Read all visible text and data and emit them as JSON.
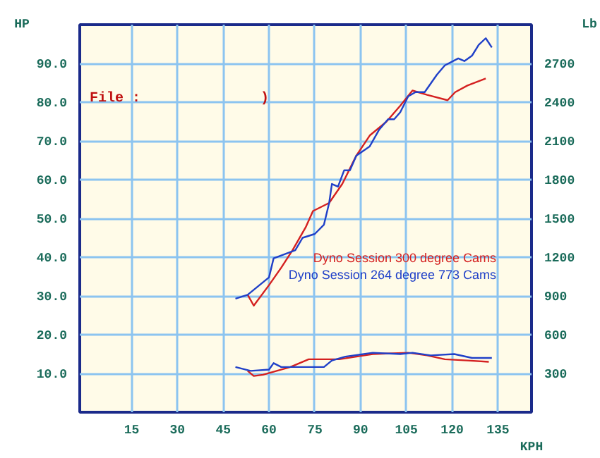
{
  "chart_data": {
    "type": "line",
    "xlabel": "KPH",
    "ylabel": "HP",
    "y2label": "Lb",
    "xlim": [
      -2,
      146
    ],
    "ylim": [
      0,
      100
    ],
    "y2lim": [
      0,
      3000
    ],
    "xticks": [
      15,
      30,
      45,
      60,
      75,
      90,
      105,
      120,
      135
    ],
    "yticks": [
      {
        "value": 10,
        "label": "10.0"
      },
      {
        "value": 20,
        "label": "20.0"
      },
      {
        "value": 30,
        "label": "30.0"
      },
      {
        "value": 40,
        "label": "40.0"
      },
      {
        "value": 50,
        "label": "50.0"
      },
      {
        "value": 60,
        "label": "60.0"
      },
      {
        "value": 70,
        "label": "70.0"
      },
      {
        "value": 80,
        "label": "80.0"
      },
      {
        "value": 90,
        "label": "90.0"
      }
    ],
    "y2ticks": [
      300,
      600,
      900,
      1200,
      1500,
      1800,
      2100,
      2400,
      2700
    ],
    "grid": true,
    "legend": "right",
    "annotations": [
      "File    :",
      ")"
    ],
    "series": [
      {
        "name": "Dyno Session 300 degree Cams",
        "color": "#d42020",
        "x": [
          53,
          55,
          60,
          64,
          67.7,
          72,
          74.4,
          79.7,
          84,
          88.6,
          93,
          98.4,
          103,
          107,
          111.8,
          118.5,
          121,
          125,
          131
        ],
        "values": [
          30.3,
          27.5,
          32.8,
          37.3,
          41.8,
          47.7,
          51.9,
          54,
          58.9,
          66.2,
          71.4,
          74.9,
          79.1,
          83,
          81.9,
          80.5,
          82.6,
          84.3,
          86.1
        ]
      },
      {
        "name": "Dyno Session 264 degree 773 Cams",
        "color": "#2040c8",
        "x": [
          49,
          53,
          60,
          61.5,
          68.6,
          71,
          75,
          78,
          79.7,
          80.6,
          82.6,
          84.6,
          86.5,
          88.6,
          91,
          93,
          96,
          99,
          101,
          103,
          105.6,
          108,
          111,
          115,
          117.6,
          122,
          124,
          126.5,
          128.7,
          131,
          133
        ],
        "values": [
          29.3,
          30.3,
          34.8,
          39.7,
          41.8,
          45,
          46,
          48.4,
          54,
          58.9,
          58.2,
          62.4,
          62.4,
          66.2,
          67.5,
          68.6,
          72.8,
          75.6,
          75.6,
          77.4,
          81.5,
          82.6,
          82.6,
          87.1,
          89.5,
          91.3,
          90.6,
          92,
          94.8,
          96.5,
          94.1
        ]
      },
      {
        "color": "#d42020",
        "axis": "y2",
        "x": [
          53,
          55,
          58,
          67,
          73,
          83,
          94,
          105.6,
          111.8,
          117.6,
          125,
          132
        ],
        "values": [
          320,
          280,
          290,
          350,
          410,
          410,
          450,
          460,
          440,
          410,
          400,
          390
        ]
      },
      {
        "color": "#2040c8",
        "axis": "y2",
        "x": [
          49,
          54,
          60,
          61.5,
          64,
          67,
          78,
          80.6,
          85,
          94,
          103,
          107,
          113,
          120.7,
          126.5,
          133
        ],
        "values": [
          350,
          320,
          330,
          380,
          350,
          350,
          350,
          400,
          430,
          460,
          450,
          460,
          440,
          450,
          420,
          420
        ]
      }
    ]
  }
}
